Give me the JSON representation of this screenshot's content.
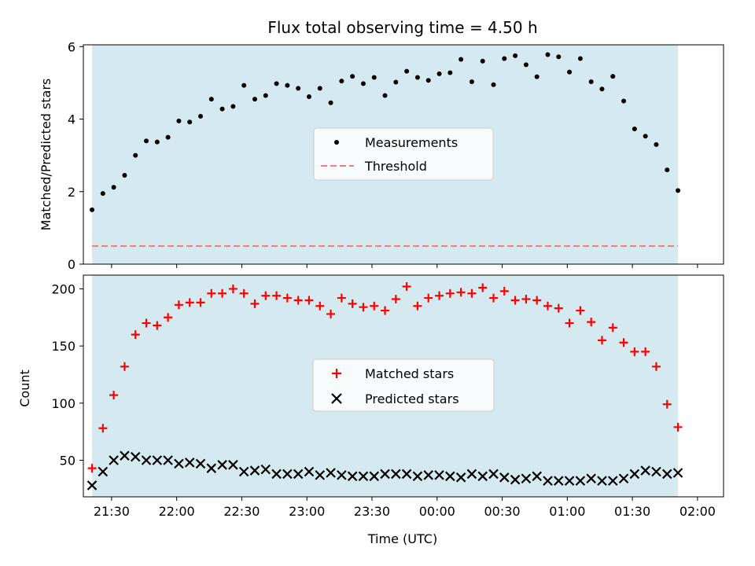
{
  "chart_data": [
    {
      "type": "scatter",
      "title": "Flux total observing time = 4.50 h",
      "ylabel": "Matched/Predicted stars",
      "xlabel": "",
      "ylim": [
        0,
        6.05
      ],
      "xlim": [
        "21:17",
        "02:12"
      ],
      "yticks": [
        0,
        2,
        4,
        6
      ],
      "xticks": [
        "21:30",
        "22:00",
        "22:30",
        "23:00",
        "23:30",
        "00:00",
        "00:30",
        "01:00",
        "01:30",
        "02:00"
      ],
      "shaded_interval": [
        "21:21",
        "01:51"
      ],
      "shaded_color": "#d4eaf0",
      "threshold": 0.5,
      "threshold_color": "#f08080",
      "legend_position": "center",
      "series": [
        {
          "name": "Measurements",
          "marker": "dot",
          "color": "#000000",
          "x": [
            "21:21",
            "21:26",
            "21:31",
            "21:36",
            "21:41",
            "21:46",
            "21:51",
            "21:56",
            "22:01",
            "22:06",
            "22:11",
            "22:16",
            "22:21",
            "22:26",
            "22:31",
            "22:36",
            "22:41",
            "22:46",
            "22:51",
            "22:56",
            "23:01",
            "23:06",
            "23:11",
            "23:16",
            "23:21",
            "23:26",
            "23:31",
            "23:36",
            "23:41",
            "23:46",
            "23:51",
            "23:56",
            "00:01",
            "00:06",
            "00:11",
            "00:16",
            "00:21",
            "00:26",
            "00:31",
            "00:36",
            "00:41",
            "00:46",
            "00:51",
            "00:56",
            "01:01",
            "01:06",
            "01:11",
            "01:16",
            "01:21",
            "01:26",
            "01:31",
            "01:36",
            "01:41",
            "01:46",
            "01:51"
          ],
          "y": [
            1.5,
            1.95,
            2.12,
            2.45,
            3.0,
            3.4,
            3.37,
            3.5,
            3.95,
            3.92,
            4.08,
            4.55,
            4.28,
            4.35,
            4.93,
            4.55,
            4.65,
            4.98,
            4.93,
            4.85,
            4.62,
            4.85,
            4.45,
            5.05,
            5.18,
            4.98,
            5.15,
            4.65,
            5.02,
            5.32,
            5.15,
            5.07,
            5.25,
            5.28,
            5.65,
            5.03,
            5.6,
            4.95,
            5.67,
            5.75,
            5.5,
            5.17,
            5.78,
            5.72,
            5.3,
            5.67,
            5.03,
            4.83,
            5.18,
            4.5,
            3.73,
            3.53,
            3.3,
            2.6,
            2.03
          ]
        },
        {
          "name": "Threshold",
          "marker": "dashed-line",
          "color": "#f08080"
        }
      ]
    },
    {
      "type": "scatter",
      "title": "",
      "ylabel": "Count",
      "xlabel": "Time (UTC)",
      "ylim": [
        18,
        212
      ],
      "xlim": [
        "21:17",
        "02:12"
      ],
      "yticks": [
        50,
        100,
        150,
        200
      ],
      "xticks": [
        "21:30",
        "22:00",
        "22:30",
        "23:00",
        "23:30",
        "00:00",
        "00:30",
        "01:00",
        "01:30",
        "02:00"
      ],
      "shaded_interval": [
        "21:21",
        "01:51"
      ],
      "shaded_color": "#d4eaf0",
      "legend_position": "center",
      "series": [
        {
          "name": "Matched stars",
          "marker": "plus",
          "color": "#ff0000",
          "x": [
            "21:21",
            "21:26",
            "21:31",
            "21:36",
            "21:41",
            "21:46",
            "21:51",
            "21:56",
            "22:01",
            "22:06",
            "22:11",
            "22:16",
            "22:21",
            "22:26",
            "22:31",
            "22:36",
            "22:41",
            "22:46",
            "22:51",
            "22:56",
            "23:01",
            "23:06",
            "23:11",
            "23:16",
            "23:21",
            "23:26",
            "23:31",
            "23:36",
            "23:41",
            "23:46",
            "23:51",
            "23:56",
            "00:01",
            "00:06",
            "00:11",
            "00:16",
            "00:21",
            "00:26",
            "00:31",
            "00:36",
            "00:41",
            "00:46",
            "00:51",
            "00:56",
            "01:01",
            "01:06",
            "01:11",
            "01:16",
            "01:21",
            "01:26",
            "01:31",
            "01:36",
            "01:41",
            "01:46",
            "01:51"
          ],
          "y": [
            43,
            78,
            107,
            132,
            160,
            170,
            168,
            175,
            186,
            188,
            188,
            196,
            196,
            200,
            196,
            187,
            194,
            194,
            192,
            190,
            190,
            185,
            178,
            192,
            187,
            184,
            185,
            181,
            191,
            202,
            185,
            192,
            194,
            196,
            197,
            196,
            201,
            192,
            198,
            190,
            191,
            190,
            185,
            183,
            170,
            181,
            171,
            155,
            166,
            153,
            145,
            145,
            132,
            99,
            79
          ]
        },
        {
          "name": "Predicted stars",
          "marker": "x",
          "color": "#000000",
          "x": [
            "21:21",
            "21:26",
            "21:31",
            "21:36",
            "21:41",
            "21:46",
            "21:51",
            "21:56",
            "22:01",
            "22:06",
            "22:11",
            "22:16",
            "22:21",
            "22:26",
            "22:31",
            "22:36",
            "22:41",
            "22:46",
            "22:51",
            "22:56",
            "23:01",
            "23:06",
            "23:11",
            "23:16",
            "23:21",
            "23:26",
            "23:31",
            "23:36",
            "23:41",
            "23:46",
            "23:51",
            "23:56",
            "00:01",
            "00:06",
            "00:11",
            "00:16",
            "00:21",
            "00:26",
            "00:31",
            "00:36",
            "00:41",
            "00:46",
            "00:51",
            "00:56",
            "01:01",
            "01:06",
            "01:11",
            "01:16",
            "01:21",
            "01:26",
            "01:31",
            "01:36",
            "01:41",
            "01:46",
            "01:51"
          ],
          "y": [
            28,
            40,
            50,
            54,
            53,
            50,
            50,
            50,
            47,
            48,
            47,
            43,
            46,
            46,
            40,
            41,
            42,
            38,
            38,
            38,
            40,
            37,
            39,
            37,
            36,
            36,
            36,
            38,
            38,
            38,
            36,
            37,
            37,
            36,
            35,
            38,
            36,
            38,
            35,
            33,
            34,
            36,
            32,
            32,
            32,
            32,
            34,
            32,
            32,
            34,
            38,
            41,
            40,
            38,
            39
          ]
        }
      ]
    }
  ]
}
